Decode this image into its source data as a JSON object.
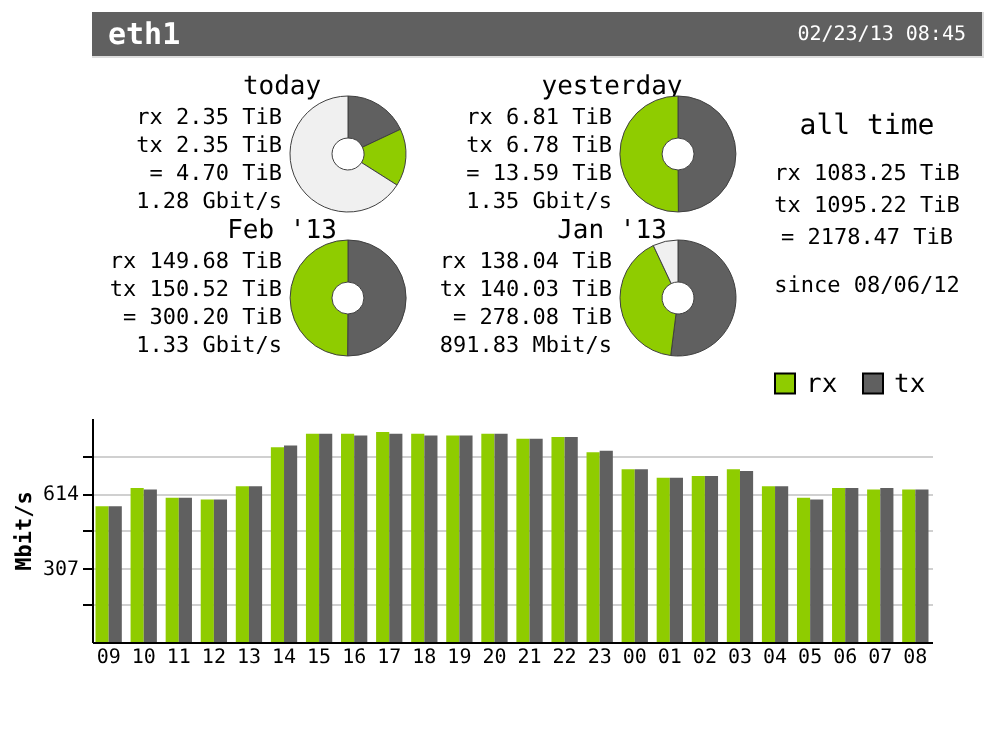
{
  "chart_data": [
    {
      "type": "other",
      "title": "eth1",
      "annotations": [
        "02/23/13 08:45"
      ]
    },
    {
      "type": "donut",
      "title": "today",
      "categories": [
        null,
        null,
        null
      ],
      "values": [
        18,
        16,
        66
      ],
      "colors": [
        "#606060",
        "#8fcc00",
        "#f0f0f0"
      ],
      "annotations": [
        "rx 2.35 TiB",
        "tx 2.35 TiB",
        "= 4.70 TiB",
        "1.28 Gbit/s"
      ]
    },
    {
      "type": "donut",
      "title": "yesterday",
      "categories": [
        null,
        null
      ],
      "values": [
        49.9,
        50.1
      ],
      "colors": [
        "#606060",
        "#8fcc00"
      ],
      "annotations": [
        "rx 6.81 TiB",
        "tx 6.78 TiB",
        "= 13.59 TiB",
        "1.35 Gbit/s"
      ]
    },
    {
      "type": "donut",
      "title": "Feb '13",
      "categories": [
        null,
        null
      ],
      "values": [
        50.1,
        49.9
      ],
      "colors": [
        "#606060",
        "#8fcc00"
      ],
      "annotations": [
        "rx 149.68 TiB",
        "tx 150.52 TiB",
        "= 300.20 TiB",
        "1.33 Gbit/s"
      ]
    },
    {
      "type": "donut",
      "title": "Jan '13",
      "categories": [
        null,
        null,
        null
      ],
      "values": [
        52,
        41,
        7
      ],
      "colors": [
        "#606060",
        "#8fcc00",
        "#f0f0f0"
      ],
      "annotations": [
        "rx 138.04 TiB",
        "tx 140.03 TiB",
        "= 278.08 TiB",
        "891.83 Mbit/s"
      ]
    },
    {
      "type": "other",
      "title": "all time",
      "annotations": [
        "rx 1083.25 TiB",
        "tx 1095.22 TiB",
        "= 2178.47 TiB",
        "since 08/06/12"
      ]
    },
    {
      "type": "bar",
      "ylabel": "Mbit/s",
      "categories": [
        "09",
        "10",
        "11",
        "12",
        "13",
        "14",
        "15",
        "16",
        "17",
        "18",
        "19",
        "20",
        "21",
        "22",
        "23",
        "00",
        "01",
        "02",
        "03",
        "04",
        "05",
        "06",
        "07",
        "08"
      ],
      "series": [
        {
          "name": "rx",
          "color": "#8fcc00",
          "values": [
            561,
            637,
            596,
            589,
            644,
            805,
            861,
            861,
            868,
            861,
            854,
            861,
            840,
            847,
            784,
            714,
            679,
            686,
            714,
            644,
            596,
            637,
            630,
            630
          ]
        },
        {
          "name": "tx",
          "color": "#606060",
          "values": [
            561,
            630,
            596,
            589,
            644,
            812,
            861,
            854,
            861,
            854,
            854,
            861,
            840,
            847,
            791,
            714,
            679,
            686,
            707,
            644,
            589,
            637,
            637,
            630
          ]
        }
      ],
      "ylim": [
        0,
        926
      ],
      "yticks": [
        {
          "value": 153.5,
          "label": null
        },
        307,
        {
          "value": 460.5,
          "label": null
        },
        614,
        {
          "value": 767.5,
          "label": null
        }
      ],
      "grid": "y",
      "legend": "top right"
    }
  ]
}
